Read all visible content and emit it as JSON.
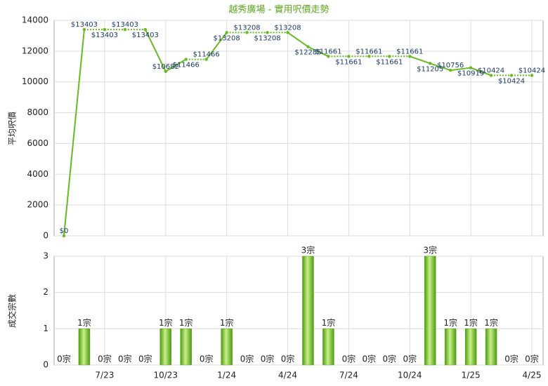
{
  "chart_data": [
    {
      "type": "line",
      "title": "越秀廣場 - 實用呎價走勢",
      "y_label": "平均呎價",
      "color": "#66bb22",
      "values": [
        0,
        13403,
        13403,
        13403,
        13403,
        10682,
        11466,
        11466,
        13208,
        13208,
        13208,
        13208,
        12285,
        11661,
        11661,
        11661,
        11661,
        11661,
        11205,
        10756,
        10919,
        10424,
        10424,
        10424
      ],
      "value_labels": [
        "$0",
        "$13403",
        "$13403",
        "$13403",
        "$13403",
        "$10682",
        "$11466",
        "$11466",
        "$13208",
        "$13208",
        "$13208",
        "$13208",
        "$12285",
        "$11661",
        "$11661",
        "$11661",
        "$11661",
        "$11661",
        "$11205",
        "$10756",
        "$10919",
        "$10424",
        "$10424",
        "$10424"
      ],
      "ylim": [
        0,
        14000
      ],
      "yticks": [
        0,
        2000,
        4000,
        6000,
        8000,
        10000,
        12000,
        14000
      ],
      "grid": true
    },
    {
      "type": "bar",
      "y_label": "成交宗數",
      "color": "#66bb22",
      "categories": [
        null,
        null,
        "7/23",
        null,
        null,
        "10/23",
        null,
        null,
        "1/24",
        null,
        null,
        "4/24",
        null,
        null,
        "7/24",
        null,
        null,
        "10/24",
        null,
        null,
        "1/25",
        null,
        null,
        "4/25"
      ],
      "values": [
        0,
        1,
        0,
        0,
        0,
        1,
        1,
        0,
        1,
        0,
        0,
        0,
        3,
        1,
        0,
        0,
        0,
        0,
        3,
        1,
        1,
        1,
        0,
        0
      ],
      "value_labels": [
        "0宗",
        "1宗",
        "0宗",
        "0宗",
        "0宗",
        "1宗",
        "1宗",
        "0宗",
        "1宗",
        "0宗",
        "0宗",
        "0宗",
        "3宗",
        "1宗",
        "0宗",
        "0宗",
        "0宗",
        "0宗",
        "3宗",
        "1宗",
        "1宗",
        "1宗",
        "0宗",
        "0宗"
      ],
      "ylim": [
        0,
        3
      ],
      "yticks": [
        0,
        1,
        2,
        3
      ],
      "grid": true
    }
  ]
}
